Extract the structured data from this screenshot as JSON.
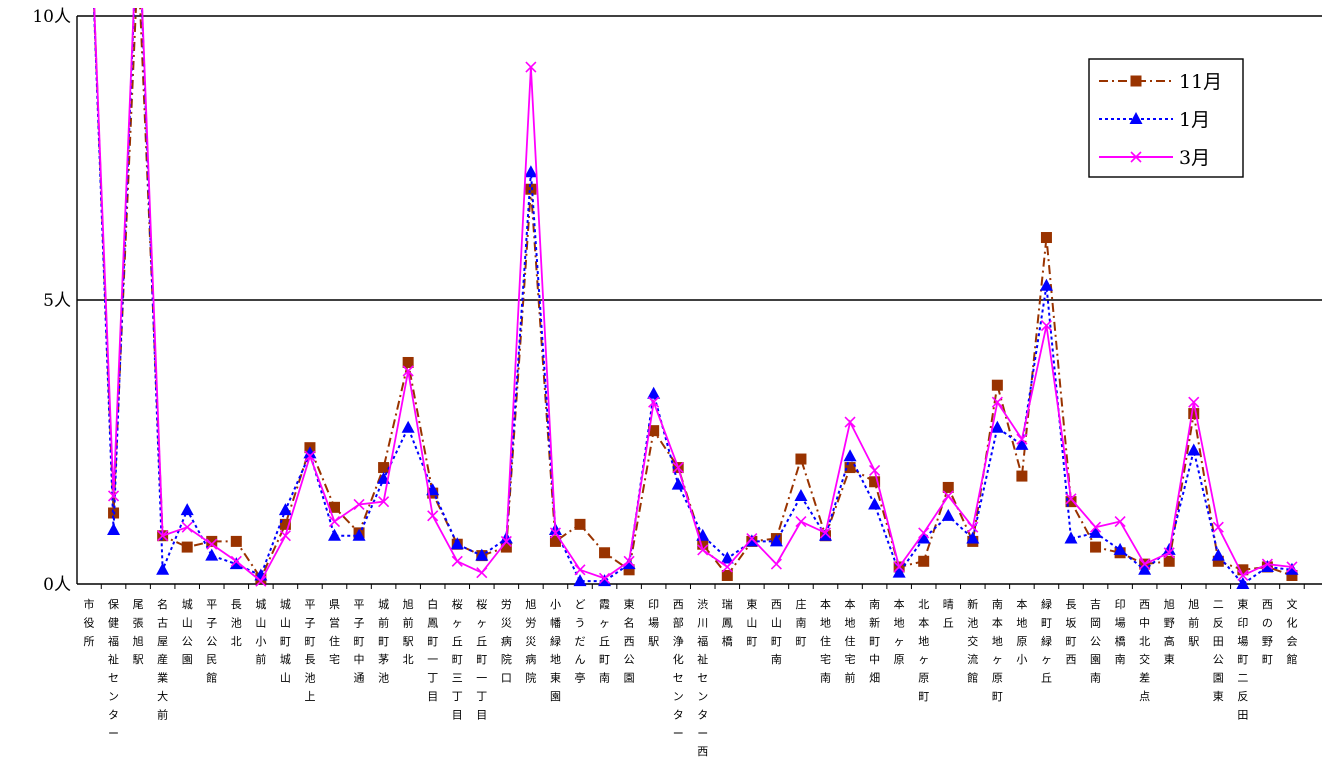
{
  "chart_data": {
    "type": "line",
    "title": "",
    "xlabel": "",
    "ylabel": "",
    "ylim": [
      0,
      10
    ],
    "yticks": [
      {
        "value": 0,
        "label": "0人"
      },
      {
        "value": 5,
        "label": "5人"
      },
      {
        "value": 10,
        "label": "10人"
      }
    ],
    "grid": "horizontal at 5 and 10",
    "legend_position": "top-right",
    "categories": [
      "市役所",
      "保健福祉センター",
      "尾張旭駅",
      "名古屋産業大前",
      "城山公園",
      "平子公民館",
      "長池北",
      "城山小前",
      "城山町城山",
      "平子町長池上",
      "県営住宅",
      "平子町中通",
      "城前町茅池",
      "旭前駅北",
      "白鳳町一丁目",
      "桜ヶ丘町三丁目",
      "桜ヶ丘町一丁目",
      "労災病院口",
      "旭労災病院",
      "小幡緑地東園",
      "どうだん亭",
      "霞ヶ丘町南",
      "東名西公園",
      "印場駅",
      "西部浄化センター",
      "渋川福祉センター西",
      "瑞鳳橋",
      "東山町",
      "西山町南",
      "庄南町",
      "本地住宅南",
      "本地住宅前",
      "南新町中畑",
      "本地ヶ原",
      "北本地ヶ原町",
      "晴丘",
      "新池交流館",
      "南本地ヶ原町",
      "本地原小",
      "緑町緑ヶ丘",
      "長坂町西",
      "吉岡公園南",
      "印場橋南",
      "西中北交差点",
      "旭野高東",
      "旭前駅",
      "二反田公園東",
      "東印場町二反田",
      "西の野町",
      "文化会館"
    ],
    "series": [
      {
        "name": "11月",
        "color": "#993300",
        "marker": "square",
        "line": "dash-dot",
        "values": [
          12.5,
          1.25,
          11.0,
          0.85,
          0.65,
          0.75,
          0.75,
          0.1,
          1.05,
          2.4,
          1.35,
          0.9,
          2.05,
          3.9,
          1.6,
          0.7,
          0.5,
          0.65,
          6.95,
          0.75,
          1.05,
          0.55,
          0.25,
          2.7,
          2.05,
          0.7,
          0.15,
          0.75,
          0.8,
          2.2,
          0.85,
          2.05,
          1.8,
          0.3,
          0.4,
          1.7,
          0.75,
          3.5,
          1.9,
          6.1,
          1.45,
          0.65,
          0.55,
          0.35,
          0.4,
          3.0,
          0.4,
          0.25,
          0.3,
          0.15
        ]
      },
      {
        "name": "1月",
        "color": "#0000ff",
        "marker": "triangle",
        "line": "dotted",
        "values": [
          12.5,
          0.95,
          12.0,
          0.25,
          1.3,
          0.5,
          0.35,
          0.15,
          1.3,
          2.3,
          0.85,
          0.85,
          1.85,
          2.75,
          1.65,
          0.7,
          0.5,
          0.8,
          7.25,
          0.95,
          0.05,
          0.05,
          0.35,
          3.35,
          1.75,
          0.85,
          0.45,
          0.75,
          0.75,
          1.55,
          0.85,
          2.25,
          1.4,
          0.2,
          0.8,
          1.2,
          0.8,
          2.75,
          2.45,
          5.25,
          0.8,
          0.9,
          0.6,
          0.25,
          0.6,
          2.35,
          0.5,
          0.0,
          0.3,
          0.25
        ]
      },
      {
        "name": "3月",
        "color": "#ff00ff",
        "marker": "cross",
        "line": "solid",
        "values": [
          12.5,
          1.55,
          12.0,
          0.85,
          1.0,
          0.7,
          0.4,
          0.05,
          0.85,
          2.25,
          1.1,
          1.4,
          1.45,
          3.75,
          1.2,
          0.4,
          0.2,
          0.75,
          9.1,
          0.9,
          0.25,
          0.1,
          0.4,
          3.2,
          2.05,
          0.6,
          0.3,
          0.8,
          0.35,
          1.1,
          0.9,
          2.85,
          2.0,
          0.3,
          0.9,
          1.55,
          1.0,
          3.2,
          2.55,
          4.55,
          1.5,
          1.0,
          1.1,
          0.35,
          0.55,
          3.2,
          1.0,
          0.15,
          0.35,
          0.3
        ]
      }
    ]
  }
}
